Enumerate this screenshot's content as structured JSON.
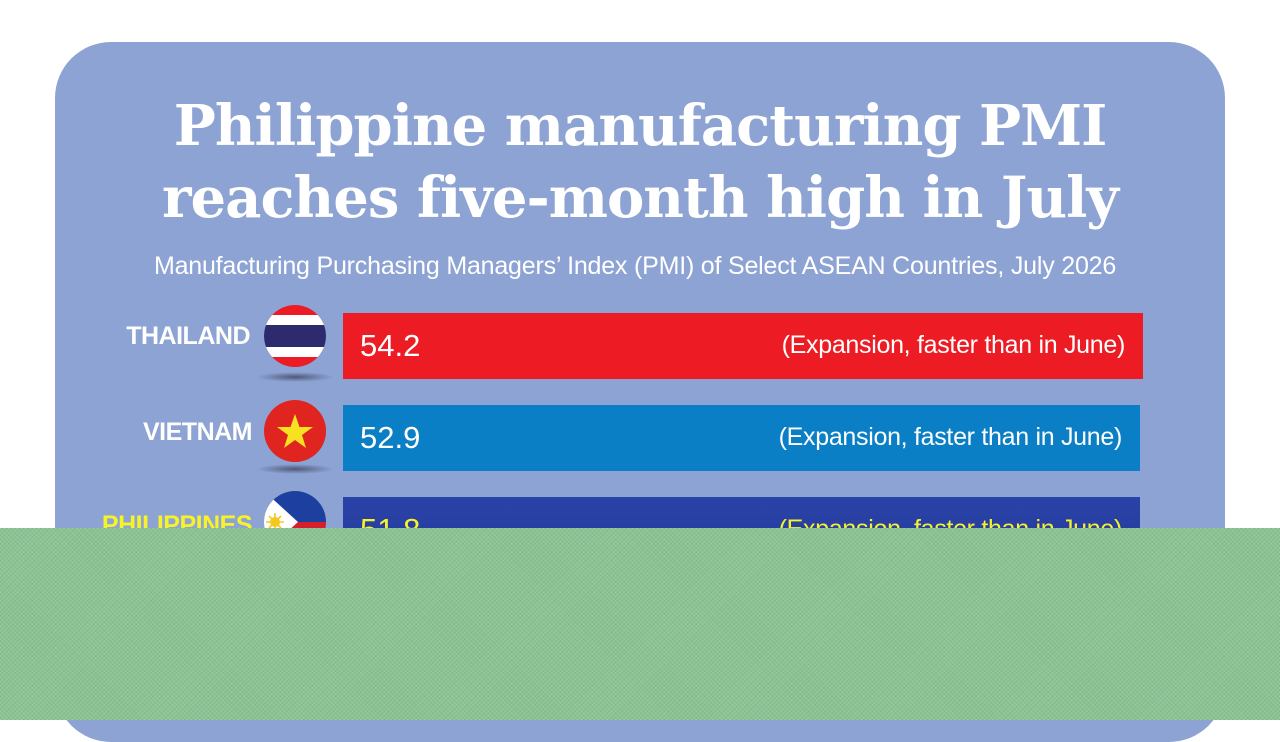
{
  "title_lines": [
    "Philippine manufacturing PMI",
    "reaches five-month high in July"
  ],
  "subtitle": "Manufacturing Purchasing Managers’ Index (PMI) of Select ASEAN Countries, July 2026",
  "colors": {
    "background": "#8da3d4",
    "thailand_bar": "#ed1c24",
    "vietnam_bar": "#0a7fc6",
    "philippines_bar": "#233a9b",
    "highlight_text": "#f6f328",
    "band": "#8cc394"
  },
  "chart_data": {
    "type": "bar",
    "orientation": "horizontal",
    "title": "Philippine manufacturing PMI reaches five-month high in July",
    "subtitle": "Manufacturing Purchasing Managers’ Index (PMI) of Select ASEAN Countries, July 2026",
    "categories": [
      "THAILAND",
      "VIETNAM",
      "PHILIPPINES"
    ],
    "values": [
      54.2,
      52.9,
      51.8
    ],
    "value_labels": [
      "54.2",
      "52.9",
      "51.8"
    ],
    "annotations": [
      "(Expansion, faster than in June)",
      "(Expansion, faster than in June)",
      "(Expansion, faster than in June)"
    ],
    "flags": [
      "thailand-flag-icon",
      "vietnam-flag-icon",
      "philippines-flag-icon"
    ],
    "highlighted": "PHILIPPINES",
    "grid": false,
    "legend": "none"
  }
}
